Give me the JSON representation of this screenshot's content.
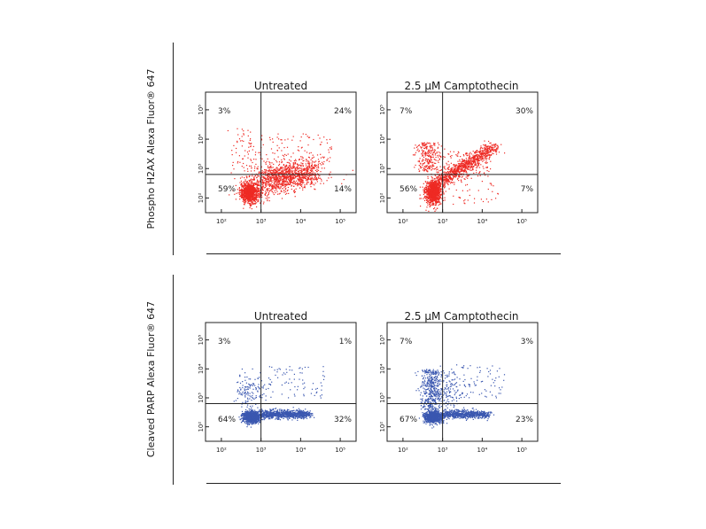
{
  "chart_data": [
    {
      "type": "scatter",
      "row_ylabel": "Phospho H2AX Alexa Fluor® 647",
      "title": "Untreated",
      "color": "#ee2a24",
      "xticks": [
        "10²",
        "10³",
        "10⁴",
        "10⁵"
      ],
      "yticks": [
        "10²",
        "10³",
        "10⁴",
        "10⁵"
      ],
      "quadrants": {
        "upper_left": "3%",
        "upper_right": "24%",
        "lower_left": "59%",
        "lower_right": "14%"
      },
      "gate": {
        "x": 3.0,
        "y": 2.8
      },
      "xlim": [
        1.6,
        5.4
      ],
      "ylim": [
        1.5,
        5.6
      ]
    },
    {
      "type": "scatter",
      "row_ylabel": "Phospho H2AX Alexa Fluor® 647",
      "title": "2.5 µM Camptothecin",
      "color": "#ee2a24",
      "xticks": [
        "10²",
        "10³",
        "10⁴",
        "10⁵"
      ],
      "yticks": [
        "10²",
        "10³",
        "10⁴",
        "10⁵"
      ],
      "quadrants": {
        "upper_left": "7%",
        "upper_right": "30%",
        "lower_left": "56%",
        "lower_right": "7%"
      },
      "gate": {
        "x": 3.0,
        "y": 2.8
      },
      "xlim": [
        1.6,
        5.4
      ],
      "ylim": [
        1.5,
        5.6
      ]
    },
    {
      "type": "scatter",
      "row_ylabel": "Cleaved PARP Alexa Fluor® 647",
      "title": "Untreated",
      "color": "#3a57b0",
      "xticks": [
        "10²",
        "10³",
        "10⁴",
        "10⁵"
      ],
      "yticks": [
        "10²",
        "10³",
        "10⁴",
        "10⁵"
      ],
      "quadrants": {
        "upper_left": "3%",
        "upper_right": "1%",
        "lower_left": "64%",
        "lower_right": "32%"
      },
      "gate": {
        "x": 3.0,
        "y": 2.8
      },
      "xlim": [
        1.6,
        5.4
      ],
      "ylim": [
        1.5,
        5.6
      ]
    },
    {
      "type": "scatter",
      "row_ylabel": "Cleaved PARP Alexa Fluor® 647",
      "title": "2.5 µM Camptothecin",
      "color": "#3a57b0",
      "xticks": [
        "10²",
        "10³",
        "10⁴",
        "10⁵"
      ],
      "yticks": [
        "10²",
        "10³",
        "10⁴",
        "10⁵"
      ],
      "quadrants": {
        "upper_left": "7%",
        "upper_right": "3%",
        "lower_left": "67%",
        "lower_right": "23%"
      },
      "gate": {
        "x": 3.0,
        "y": 2.8
      },
      "xlim": [
        1.6,
        5.4
      ],
      "ylim": [
        1.5,
        5.6
      ]
    }
  ],
  "rows": [
    {
      "ylabel": "Phospho H2AX Alexa Fluor® 647"
    },
    {
      "ylabel": "Cleaved PARP Alexa Fluor® 647"
    }
  ]
}
